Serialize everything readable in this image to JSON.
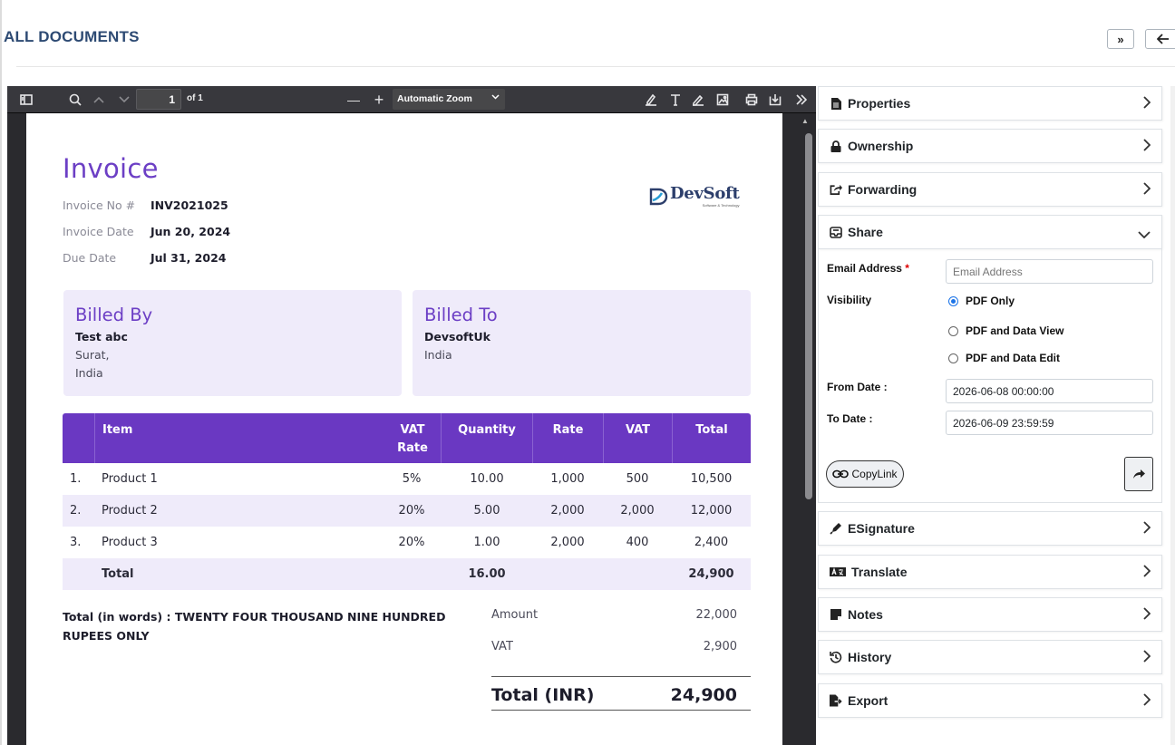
{
  "header": {
    "title": "ALL DOCUMENTS",
    "expand_label": "»",
    "back_label": "←"
  },
  "viewer": {
    "page_number": "1",
    "page_count_label": "of 1",
    "zoom_label": "Automatic Zoom",
    "zoom_out": "—",
    "zoom_in": "+"
  },
  "invoice": {
    "title": "Invoice",
    "meta": [
      {
        "label": "Invoice No #",
        "value": "INV2021025"
      },
      {
        "label": "Invoice Date",
        "value": "Jun 20, 2024"
      },
      {
        "label": "Due Date",
        "value": "Jul 31, 2024"
      }
    ],
    "logo_text": "DevSoft",
    "logo_tagline": "Software & Technology",
    "billed_by": {
      "title": "Billed By",
      "name": "Test abc",
      "lines": [
        "Surat,",
        "India"
      ]
    },
    "billed_to": {
      "title": "Billed To",
      "name": "DevsoftUk",
      "lines": [
        "India"
      ]
    },
    "columns": [
      "Item",
      "VAT Rate",
      "Quantity",
      "Rate",
      "VAT",
      "Total"
    ],
    "items": [
      {
        "num": "1.",
        "item": "Product 1",
        "vat_rate": "5%",
        "qty": "10.00",
        "rate": "1,000",
        "vat": "500",
        "total": "10,500"
      },
      {
        "num": "2.",
        "item": "Product 2",
        "vat_rate": "20%",
        "qty": "5.00",
        "rate": "2,000",
        "vat": "2,000",
        "total": "12,000"
      },
      {
        "num": "3.",
        "item": "Product 3",
        "vat_rate": "20%",
        "qty": "1.00",
        "rate": "2,000",
        "vat": "400",
        "total": "2,400"
      }
    ],
    "total_row": {
      "label": "Total",
      "qty": "16.00",
      "total": "24,900"
    },
    "words": "Total (in words) : TWENTY FOUR THOUSAND NINE HUNDRED RUPEES ONLY",
    "summary": [
      {
        "label": "Amount",
        "value": "22,000"
      },
      {
        "label": "VAT",
        "value": "2,900"
      }
    ],
    "grand_label": "Total (INR)",
    "grand_value": "24,900"
  },
  "panel": {
    "sections": {
      "properties": "Properties",
      "ownership": "Ownership",
      "forwarding": "Forwarding",
      "share": "Share",
      "esignature": "ESignature",
      "translate": "Translate",
      "notes": "Notes",
      "history": "History",
      "export": "Export"
    },
    "share": {
      "email_label": "Email Address",
      "email_required": "*",
      "email_placeholder": "Email Address",
      "visibility_label": "Visibility",
      "visibility_options": [
        "PDF Only",
        "PDF and Data View",
        "PDF and Data Edit"
      ],
      "visibility_selected": "PDF Only",
      "from_label": "From Date :",
      "from_value": "2026-06-08 00:00:00",
      "to_label": "To Date :",
      "to_value": "2026-06-09 23:59:59",
      "copylink_label": "CopyLink"
    }
  },
  "colors": {
    "accent_purple": "#6a38c2",
    "light_purple": "#efebfa",
    "title_blue": "#2d4a73",
    "radio_blue": "#1a73e8"
  }
}
